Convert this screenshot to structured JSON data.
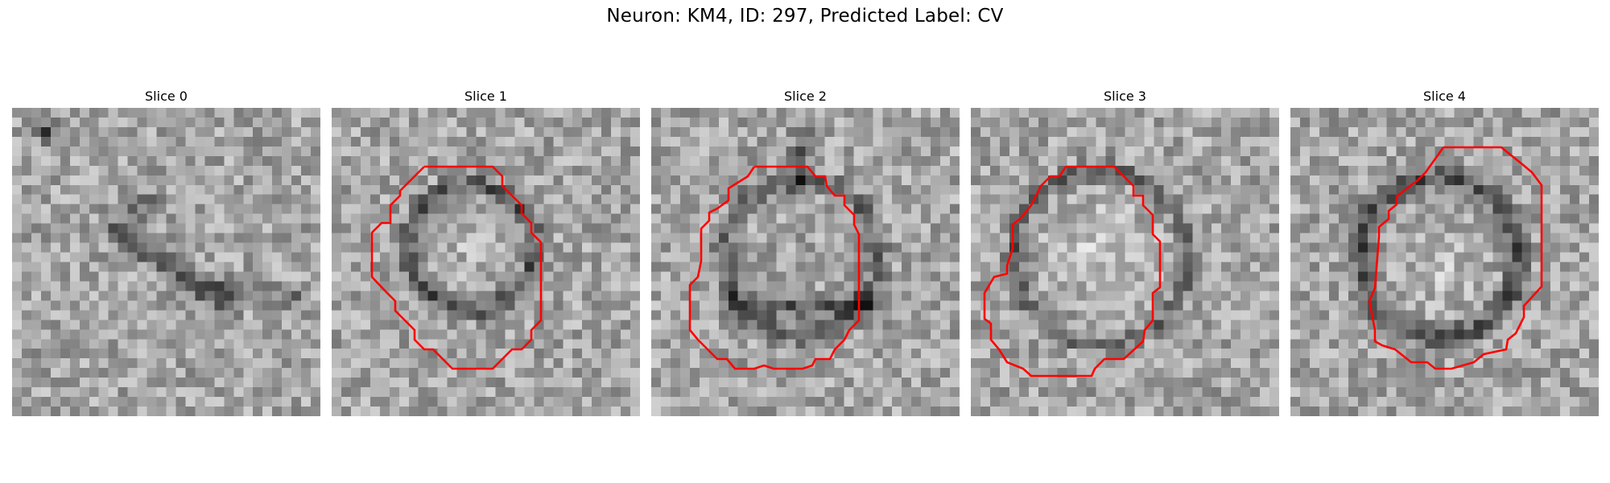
{
  "figure": {
    "title": "Neuron: KM4, ID: 297, Predicted Label: CV",
    "outline_color": "#ff0000"
  },
  "slices": [
    {
      "label": "Slice 0",
      "has_outline": false
    },
    {
      "label": "Slice 1",
      "has_outline": true
    },
    {
      "label": "Slice 2",
      "has_outline": true
    },
    {
      "label": "Slice 3",
      "has_outline": true
    },
    {
      "label": "Slice 4",
      "has_outline": true
    }
  ]
}
